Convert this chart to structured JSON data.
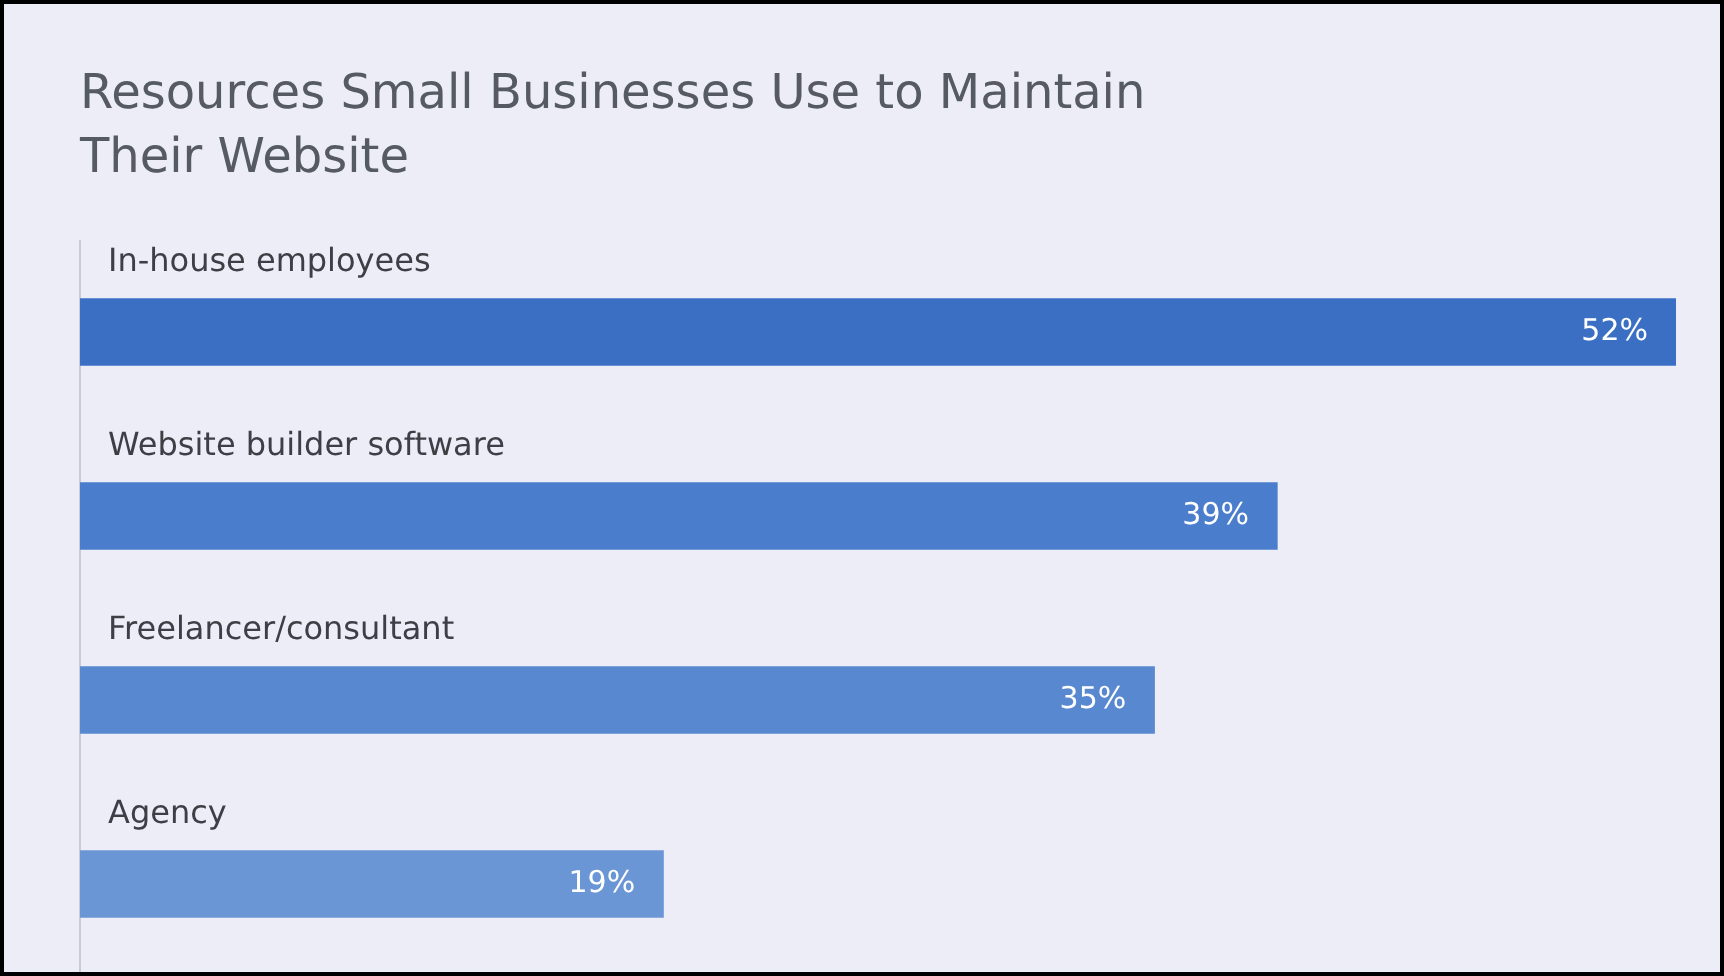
{
  "chart_data": {
    "type": "bar",
    "orientation": "horizontal",
    "title": "Resources Small Businesses Use to Maintain Their Website",
    "categories": [
      "In-house employees",
      "Website builder software",
      "Freelancer/consultant",
      "Agency"
    ],
    "values": [
      52,
      39,
      35,
      19
    ],
    "value_labels": [
      "52%",
      "39%",
      "35%",
      "19%"
    ],
    "colors": [
      "#3b6fc4",
      "#4a7dcc",
      "#5888cf",
      "#6b96d5"
    ],
    "grid": false,
    "legend": false
  }
}
